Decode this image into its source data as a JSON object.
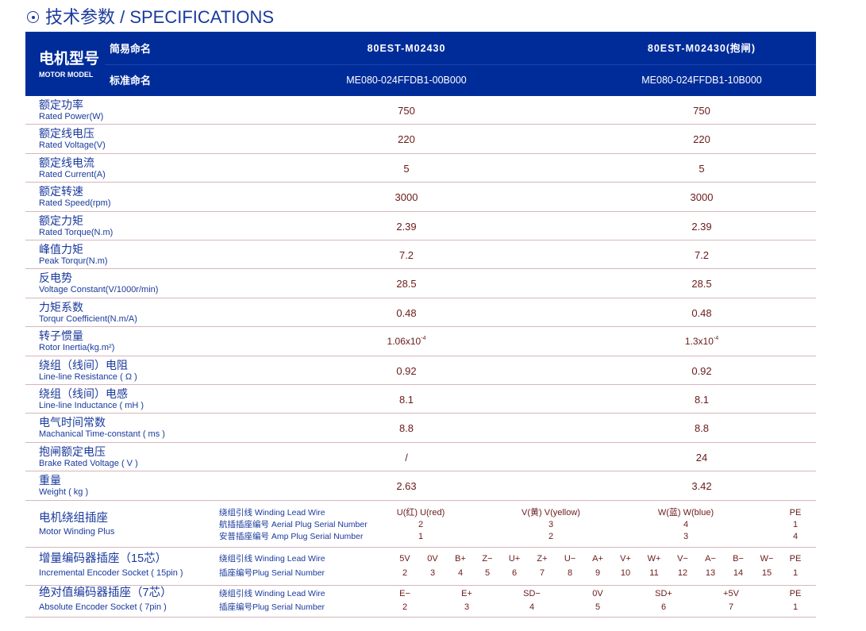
{
  "title": "技术参数 / SPECIFICATIONS",
  "header": {
    "model_zh": "电机型号",
    "model_en": "MOTOR MODEL",
    "short_label": "简易命名",
    "standard_label": "标准命名",
    "short_names": [
      "80EST-M02430",
      "80EST-M02430(抱闸)"
    ],
    "standard_names": [
      "ME080-024FFDB1-00B000",
      "ME080-024FFDB1-10B000"
    ]
  },
  "specs": [
    {
      "zh": "额定功率",
      "en": "Rated Power(W)",
      "values": [
        "750",
        "750"
      ]
    },
    {
      "zh": "额定线电压",
      "en": "Rated Voltage(V)",
      "values": [
        "220",
        "220"
      ]
    },
    {
      "zh": "额定线电流",
      "en": "Rated Current(A)",
      "values": [
        "5",
        "5"
      ]
    },
    {
      "zh": "额定转速",
      "en": "Rated Speed(rpm)",
      "values": [
        "3000",
        "3000"
      ]
    },
    {
      "zh": "额定力矩",
      "en": "Rated Torque(N.m)",
      "values": [
        "2.39",
        "2.39"
      ]
    },
    {
      "zh": "峰值力矩",
      "en": "Peak Torqur(N.m)",
      "values": [
        "7.2",
        "7.2"
      ]
    },
    {
      "zh": "反电势",
      "en": "Voltage Constant(V/1000r/min)",
      "values": [
        "28.5",
        "28.5"
      ]
    },
    {
      "zh": "力矩系数",
      "en": "Torqur Coefficient(N.m/A)",
      "values": [
        "0.48",
        "0.48"
      ]
    },
    {
      "zh": "转子惯量",
      "en": "Rotor Inertia(kg.m²)",
      "values": [
        "1.06x10",
        "1.3x10"
      ],
      "exp": "-4"
    },
    {
      "zh": "绕组（线间）电阻",
      "en": "Line-line Resistance ( Ω )",
      "values": [
        "0.92",
        "0.92"
      ]
    },
    {
      "zh": "绕组（线间）电感",
      "en": "Line-line Inductance ( mH )",
      "values": [
        "8.1",
        "8.1"
      ]
    },
    {
      "zh": "电气时间常数",
      "en": "Machanical Time-constant ( ms )",
      "values": [
        "8.8",
        "8.8"
      ]
    },
    {
      "zh": "抱闸额定电压",
      "en": "Brake Rated Voltage ( V )",
      "values": [
        "/",
        "24"
      ]
    },
    {
      "zh": "重量",
      "en": "Weight ( kg )",
      "values": [
        "2.63",
        "3.42"
      ]
    }
  ],
  "plugs": [
    {
      "zh": "电机绕组插座",
      "en": "Motor Winding Plus",
      "rows": [
        {
          "label": "绕组引线 Winding Lead Wire",
          "values": [
            "U(红) U(red)",
            "V(黄) V(yellow)",
            "W(蓝) W(blue)",
            "PE"
          ]
        },
        {
          "label": "航插插座编号 Aerial Plug Serial Number",
          "values": [
            "2",
            "3",
            "4",
            "1"
          ]
        },
        {
          "label": "安普插座编号 Amp Plug Serial Number",
          "values": [
            "1",
            "2",
            "3",
            "4"
          ]
        }
      ]
    },
    {
      "zh": "增量编码器插座（15芯）",
      "en": "Incremental Encoder Socket ( 15pin )",
      "rows": [
        {
          "label": "绕组引线 Winding Lead Wire",
          "values": [
            "5V",
            "0V",
            "B+",
            "Z−",
            "U+",
            "Z+",
            "U−",
            "A+",
            "V+",
            "W+",
            "V−",
            "A−",
            "B−",
            "W−",
            "PE"
          ]
        },
        {
          "label": "插座编号Plug Serial Number",
          "values": [
            "2",
            "3",
            "4",
            "5",
            "6",
            "7",
            "8",
            "9",
            "10",
            "11",
            "12",
            "13",
            "14",
            "15",
            "1"
          ]
        }
      ]
    },
    {
      "zh": "绝对值编码器插座（7芯）",
      "en": "Absolute Encoder Socket ( 7pin )",
      "rows": [
        {
          "label": "绕组引线 Winding Lead Wire",
          "values": [
            "E−",
            "E+",
            "SD−",
            "0V",
            "SD+",
            "+5V",
            "PE"
          ]
        },
        {
          "label": "插座编号Plug Serial Number",
          "values": [
            "2",
            "3",
            "4",
            "5",
            "6",
            "7",
            "1"
          ]
        }
      ]
    }
  ],
  "colors": {
    "header_bg": "#002c9a",
    "label_text": "#1a3a9c",
    "value_text": "#6a1a1a",
    "divider": "#d7b5bd"
  }
}
